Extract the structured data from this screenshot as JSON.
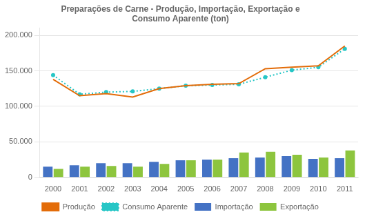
{
  "chart_data": {
    "type": "bar",
    "title": [
      "Preparações de Carne - Produção, Importação, Exportação e",
      "Consumo Aparente (ton)"
    ],
    "categories": [
      "2000",
      "2001",
      "2002",
      "2003",
      "2004",
      "2005",
      "2006",
      "2007",
      "2008",
      "2009",
      "2010",
      "2011"
    ],
    "series": [
      {
        "name": "Importação",
        "type": "bar",
        "color": "#4472C4",
        "values": [
          15000,
          17000,
          20000,
          20000,
          22000,
          24000,
          25000,
          27000,
          28000,
          30000,
          26000,
          27000
        ]
      },
      {
        "name": "Exportação",
        "type": "bar",
        "color": "#8DC53E",
        "values": [
          12000,
          15000,
          16000,
          15000,
          19000,
          24000,
          25000,
          35000,
          36000,
          32000,
          28000,
          38000
        ]
      },
      {
        "name": "Produção",
        "type": "line",
        "color": "#E36C09",
        "line_style": "solid",
        "marker": "none",
        "values": [
          138000,
          115000,
          118000,
          113000,
          125000,
          129000,
          131000,
          132000,
          153000,
          155000,
          157000,
          185000
        ]
      },
      {
        "name": "Consumo Aparente",
        "type": "line",
        "color": "#26C6C6",
        "line_style": "dotted",
        "marker": "circle",
        "values": [
          144000,
          117000,
          120000,
          121000,
          125000,
          129000,
          130000,
          131000,
          141000,
          151000,
          155000,
          181000
        ]
      }
    ],
    "ylim": [
      0,
      210000
    ],
    "yticks": [
      0,
      {
        "value": 50000,
        "label": "50.000"
      },
      {
        "value": 100000,
        "label": "100.000"
      },
      {
        "value": 150000,
        "label": "150.000"
      },
      {
        "value": 200000,
        "label": "200.000"
      }
    ],
    "grid": true,
    "legend": "bottom"
  }
}
